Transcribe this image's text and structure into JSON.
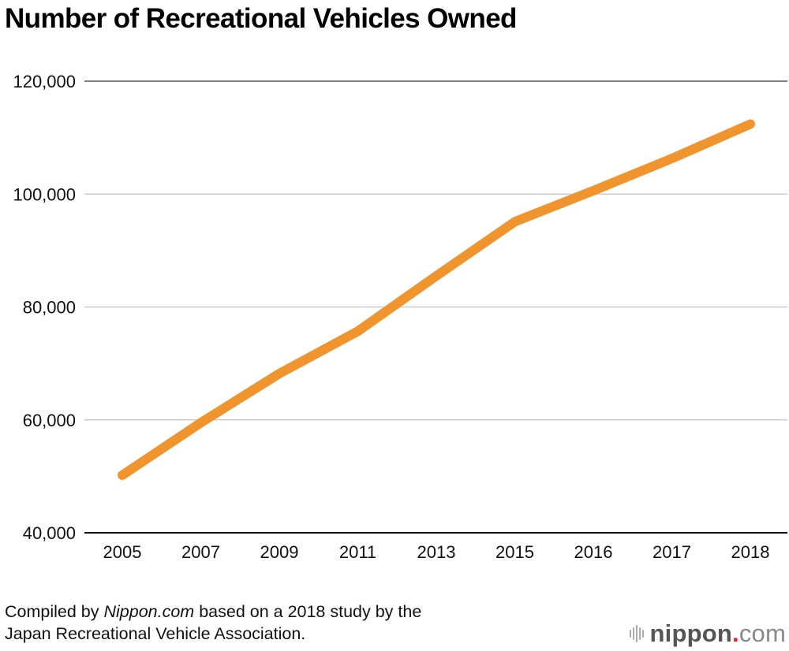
{
  "chart_data": {
    "type": "line",
    "title": "Number of Recreational Vehicles Owned",
    "xlabel": "",
    "ylabel": "",
    "categories": [
      "2005",
      "2007",
      "2009",
      "2011",
      "2013",
      "2015",
      "2016",
      "2017",
      "2018"
    ],
    "series": [
      {
        "name": "Recreational vehicles owned",
        "color": "#f0952e",
        "values": [
          50200,
          59500,
          68200,
          75700,
          85500,
          95100,
          100600,
          106300,
          112400
        ]
      }
    ],
    "ylim": [
      40000,
      120000
    ],
    "yticks": [
      40000,
      60000,
      80000,
      100000,
      120000
    ],
    "ytick_labels": [
      "40,000",
      "60,000",
      "80,000",
      "100,000",
      "120,000"
    ],
    "grid": true,
    "legend": "none"
  },
  "footer": {
    "source_prefix": "Compiled by ",
    "source_italic": "Nippon.com",
    "source_suffix": " based on a 2018 study by the",
    "source_line2": "Japan Recreational Vehicle Association.",
    "logo_name": "nippon",
    "logo_dot": ".",
    "logo_suffix": "com",
    "logo_icon": "sound-bars-icon"
  }
}
